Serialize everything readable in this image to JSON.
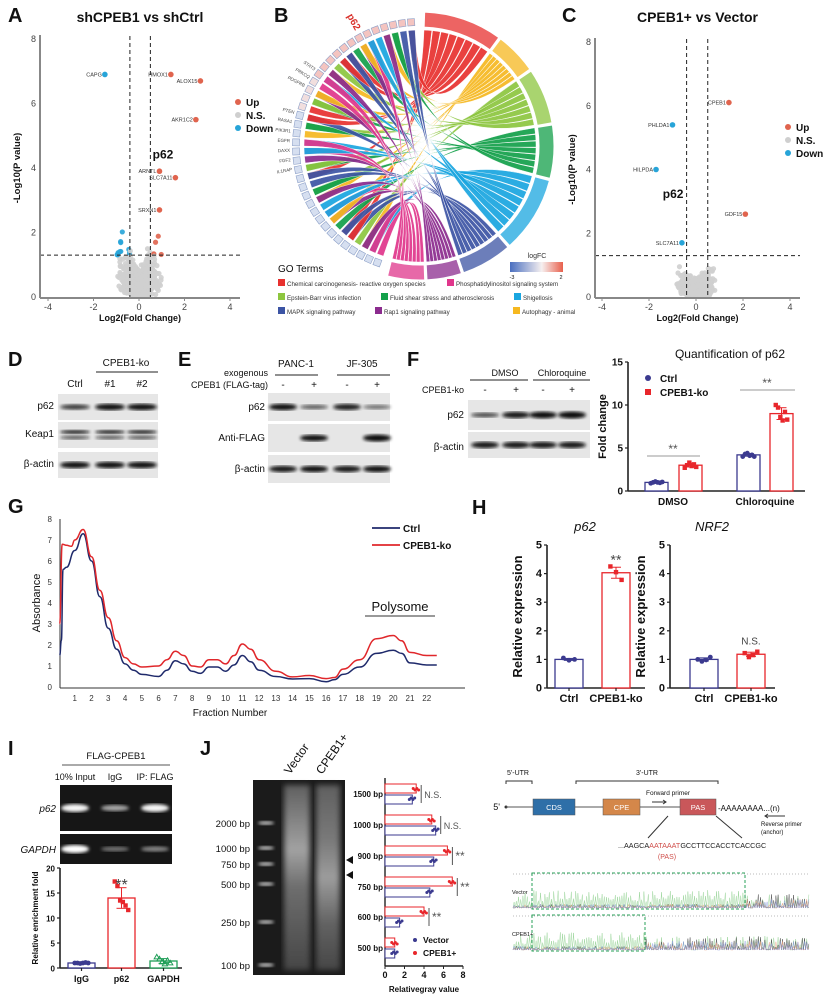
{
  "panel_labels": [
    "A",
    "B",
    "C",
    "D",
    "E",
    "F",
    "G",
    "H",
    "I",
    "J"
  ],
  "colors": {
    "up": "#e0644e",
    "ns": "#cfcfcf",
    "down": "#27a4d8",
    "ctrl": "#3b3a8f",
    "ko": "#e8262b",
    "gapdh": "#1f9e57"
  },
  "chart_data": [
    {
      "id": "A",
      "type": "scatter",
      "title": "shCPEB1 vs shCtrl",
      "xlabel": "Log2(Fold Change)",
      "ylabel": "-Log10(P value)",
      "xlim": [
        -4.4,
        4.4
      ],
      "xticks": [
        -4,
        -2,
        0,
        2,
        4
      ],
      "ylim": [
        0,
        8
      ],
      "yticks": [
        0,
        2,
        4,
        6,
        8
      ],
      "fc_thresholds": [
        -0.4,
        0.5
      ],
      "p_threshold": 1.3,
      "legend": [
        "Up",
        "N.S.",
        "Down"
      ],
      "legend_position": "right",
      "highlight": {
        "label": "p62",
        "x": 0.6,
        "y": 4.3
      },
      "labeled_genes": [
        {
          "name": "CAPG",
          "x": -1.5,
          "y": 6.9
        },
        {
          "name": "HMOX1",
          "x": 1.4,
          "y": 6.9
        },
        {
          "name": "ALOX15",
          "x": 2.7,
          "y": 6.7
        },
        {
          "name": "AKR1C2",
          "x": 2.5,
          "y": 5.5
        },
        {
          "name": "ARNTL",
          "x": 0.9,
          "y": 3.9
        },
        {
          "name": "SLC7A11",
          "x": 1.6,
          "y": 3.7
        },
        {
          "name": "SRXN1",
          "x": 0.9,
          "y": 2.7
        }
      ]
    },
    {
      "id": "B",
      "type": "chord",
      "legend_title": "GO Terms",
      "colorbar_title": "logFC",
      "colorbar_range": [
        -3,
        2
      ],
      "terms": [
        {
          "name": "Chemical carcinogenesis- reactive oxygen species",
          "color": "#e8312f"
        },
        {
          "name": "Phosphatidylinositol signaling system",
          "color": "#e0368c"
        },
        {
          "name": "Epstein-Barr virus infection",
          "color": "#8dc63f"
        },
        {
          "name": "Fluid shear stress and atherosclerosis",
          "color": "#13a04a"
        },
        {
          "name": "Shigellosis",
          "color": "#1aa6e0"
        },
        {
          "name": "MAPK signaling pathway",
          "color": "#3c54a4"
        },
        {
          "name": "Rap1 signaling pathway",
          "color": "#8b2b8e"
        },
        {
          "name": "Autophagy - animal",
          "color": "#f6b820"
        }
      ],
      "highlight_gene": "p62",
      "genes": [
        "STAT3",
        "PRKCQ",
        "PDGFRB",
        "PTEN",
        "RASA1",
        "PIK3R1",
        "EGFR",
        "DAXX",
        "FGF2",
        "IL1RAP"
      ]
    },
    {
      "id": "C",
      "type": "scatter",
      "title": "CPEB1+ vs Vector",
      "xlabel": "Log2(Fold Change)",
      "ylabel": "-Log10(P value)",
      "xlim": [
        -4.4,
        4.4
      ],
      "xticks": [
        -4,
        -2,
        0,
        2,
        4
      ],
      "ylim": [
        0,
        8
      ],
      "yticks": [
        0,
        2,
        4,
        6,
        8
      ],
      "fc_thresholds": [
        -0.4,
        0.5
      ],
      "p_threshold": 1.3,
      "legend": [
        "Up",
        "N.S.",
        "Down"
      ],
      "legend_position": "right",
      "highlight": {
        "label": "p62",
        "x": -0.45,
        "y": 3.1
      },
      "labeled_genes": [
        {
          "name": "CPEB1",
          "x": 1.4,
          "y": 6.1
        },
        {
          "name": "PHLDA1",
          "x": -1.0,
          "y": 5.4
        },
        {
          "name": "HILPDA",
          "x": -1.7,
          "y": 4.0
        },
        {
          "name": "GDF15",
          "x": 2.1,
          "y": 2.6
        },
        {
          "name": "SLC7A11",
          "x": -0.6,
          "y": 1.7
        }
      ]
    },
    {
      "id": "F",
      "type": "bar",
      "title": "Quantification of p62",
      "ylabel": "Fold change",
      "categories": [
        "DMSO",
        "Chloroquine"
      ],
      "ylim": [
        0,
        15
      ],
      "yticks": [
        0,
        5,
        10,
        15
      ],
      "series": [
        {
          "name": "Ctrl",
          "values": [
            1.0,
            4.2
          ],
          "points": [
            [
              0.9,
              1.0,
              1.1,
              1.0,
              0.95,
              1.05
            ],
            [
              4.0,
              4.3,
              4.4,
              4.1,
              4.2,
              4.0
            ]
          ]
        },
        {
          "name": "CPEB1-ko",
          "values": [
            3.0,
            9.0
          ],
          "points": [
            [
              2.7,
              3.0,
              3.3,
              2.9,
              3.1,
              2.8
            ],
            [
              10.0,
              9.7,
              8.6,
              8.2,
              9.2,
              8.3
            ]
          ]
        }
      ],
      "significance": [
        "**",
        "**"
      ],
      "legend_position": "top-left"
    },
    {
      "id": "G",
      "type": "line",
      "xlabel": "Fraction Number",
      "ylabel": "Absorbance",
      "xticks": [
        1,
        2,
        3,
        4,
        5,
        6,
        7,
        8,
        9,
        10,
        11,
        12,
        13,
        14,
        15,
        16,
        17,
        18,
        19,
        20,
        21,
        22
      ],
      "ylim": [
        0,
        8
      ],
      "yticks": [
        0,
        1,
        2,
        3,
        4,
        5,
        6,
        7,
        8
      ],
      "annotation": "Polysome",
      "legend_position": "top-right",
      "series": [
        {
          "name": "Ctrl",
          "color": "#1f2a6b",
          "x": [
            0.1,
            0.2,
            0.3,
            0.5,
            1,
            1.5,
            2,
            2.5,
            3,
            3.5,
            4,
            4.5,
            5,
            6,
            6.5,
            7,
            7.5,
            8,
            8.5,
            9,
            9.5,
            10,
            10.5,
            11,
            11.5,
            12,
            13,
            14,
            15,
            16,
            16.5,
            17,
            18,
            19,
            20,
            20.5,
            21,
            22,
            22.6
          ],
          "y": [
            1.5,
            2.2,
            5.6,
            5.7,
            6.5,
            7.3,
            6.0,
            4.3,
            2.8,
            1.8,
            1.1,
            0.8,
            0.6,
            0.5,
            0.8,
            1.25,
            1.1,
            0.75,
            0.65,
            0.95,
            0.95,
            0.75,
            1.05,
            1.5,
            1.2,
            0.8,
            0.5,
            0.38,
            0.4,
            0.25,
            0.35,
            0.6,
            0.95,
            1.6,
            1.75,
            1.6,
            1.15,
            1.05,
            1.05
          ]
        },
        {
          "name": "CPEB1-ko",
          "color": "#e0272b",
          "x": [
            0.1,
            0.25,
            0.5,
            0.8,
            1,
            1.5,
            2,
            2.5,
            3,
            3.5,
            4,
            4.5,
            5,
            6,
            6.5,
            7,
            7.5,
            8,
            8.5,
            9,
            9.5,
            10,
            10.5,
            11,
            11.5,
            12,
            13,
            14,
            15,
            16,
            16.5,
            17,
            18,
            19,
            20,
            20.5,
            21,
            22,
            22.6
          ],
          "y": [
            3.0,
            6.8,
            6.75,
            6.7,
            7.0,
            7.5,
            6.2,
            4.6,
            3.3,
            2.2,
            1.4,
            1.1,
            0.95,
            1.0,
            1.3,
            1.7,
            1.5,
            1.0,
            0.95,
            1.3,
            1.3,
            1.1,
            1.5,
            2.05,
            1.8,
            1.3,
            0.75,
            0.48,
            0.55,
            0.4,
            0.45,
            0.85,
            1.3,
            2.3,
            2.45,
            2.2,
            1.65,
            1.5,
            1.5
          ]
        }
      ]
    },
    {
      "id": "H1",
      "type": "bar",
      "title": "p62",
      "ylabel": "Relative expression",
      "categories": [
        "Ctrl",
        "CPEB1-ko"
      ],
      "ylim": [
        0,
        5
      ],
      "yticks": [
        0,
        1,
        2,
        3,
        4,
        5
      ],
      "values": [
        1.0,
        4.03
      ],
      "points": [
        [
          1.05,
          0.97,
          1.0
        ],
        [
          4.25,
          4.05,
          3.78
        ]
      ],
      "significance": "**"
    },
    {
      "id": "H2",
      "type": "bar",
      "title": "NRF2",
      "ylabel": "Relative expression",
      "categories": [
        "Ctrl",
        "CPEB1-ko"
      ],
      "ylim": [
        0,
        5
      ],
      "yticks": [
        0,
        1,
        2,
        3,
        4,
        5
      ],
      "values": [
        1.0,
        1.18
      ],
      "points": [
        [
          1.0,
          0.93,
          0.98,
          1.08
        ],
        [
          1.22,
          1.08,
          1.15,
          1.27
        ]
      ],
      "significance": "N.S."
    },
    {
      "id": "I",
      "type": "bar",
      "ylabel": "Relative enrichment fold",
      "categories": [
        "IgG",
        "p62",
        "GAPDH"
      ],
      "ylim": [
        0,
        20
      ],
      "yticks": [
        0,
        5,
        10,
        15,
        20
      ],
      "values": [
        1.0,
        14.0,
        1.4
      ],
      "points": [
        [
          1.0,
          1.0,
          0.9,
          1.0,
          1.1,
          1.0
        ],
        [
          17.3,
          16.4,
          13.5,
          13.2,
          12.5,
          11.6
        ],
        [
          2.2,
          1.8,
          1.2,
          0.8,
          1.5,
          1.0
        ]
      ],
      "significance": [
        "",
        "**",
        ""
      ]
    },
    {
      "id": "J",
      "type": "bar",
      "orientation": "horizontal",
      "xlabel": "Relativegray value",
      "categories": [
        "1500 bp",
        "1000 bp",
        "900 bp",
        "750 bp",
        "600 bp",
        "500 bp"
      ],
      "xlim": [
        0,
        8
      ],
      "xticks": [
        0,
        2,
        4,
        6,
        8
      ],
      "legend_position": "bottom-right",
      "series": [
        {
          "name": "Vector",
          "values": [
            2.8,
            5.2,
            5.0,
            4.6,
            1.5,
            1.0
          ]
        },
        {
          "name": "CPEB1+",
          "values": [
            3.2,
            4.8,
            6.4,
            6.9,
            4.0,
            1.0
          ]
        }
      ],
      "significance": [
        "N.S.",
        "N.S.",
        "**",
        "**",
        "**",
        ""
      ]
    }
  ],
  "blot_D": {
    "group": "CPEB1-ko",
    "lanes": [
      "Ctrl",
      "#1",
      "#2"
    ],
    "rows": [
      {
        "name": "p62",
        "levels": [
          0.6,
          0.9,
          0.9
        ]
      },
      {
        "name": "Keap1",
        "levels": [
          0.8,
          0.8,
          0.8
        ]
      },
      {
        "name": "β-actin",
        "levels": [
          0.9,
          0.9,
          0.9
        ]
      }
    ]
  },
  "blot_E": {
    "groups": [
      "PANC-1",
      "JF-305"
    ],
    "row_label1": "exogenous",
    "row_label2": "CPEB1 (FLAG-tag)",
    "signs": [
      "-",
      "+",
      "-",
      "+"
    ],
    "rows": [
      {
        "name": "p62",
        "levels": [
          0.9,
          0.4,
          0.8,
          0.3
        ]
      },
      {
        "name": "Anti-FLAG",
        "levels": [
          0,
          0.9,
          0,
          1.0
        ]
      },
      {
        "name": "β-actin",
        "levels": [
          0.85,
          0.9,
          0.85,
          0.9
        ]
      }
    ]
  },
  "blot_F": {
    "groups": [
      "DMSO",
      "Chloroquine"
    ],
    "row_label": "CPEB1-ko",
    "signs": [
      "-",
      "+",
      "-",
      "+"
    ],
    "rows": [
      {
        "name": "p62",
        "levels": [
          0.5,
          0.85,
          0.95,
          1.0
        ]
      },
      {
        "name": "β-actin",
        "levels": [
          0.85,
          0.85,
          0.85,
          0.85
        ]
      }
    ]
  },
  "gel_I": {
    "group": "FLAG-CPEB1",
    "lanes": [
      "10% Input",
      "IgG",
      "IP: FLAG"
    ],
    "rows": [
      {
        "name": "p62",
        "levels": [
          0.95,
          0.5,
          0.95
        ]
      },
      {
        "name": "GAPDH",
        "levels": [
          1.0,
          0.2,
          0.3
        ]
      }
    ]
  },
  "gel_J": {
    "lanes": [
      "Vector",
      "CPEB1+"
    ],
    "ladder": [
      "2000 bp",
      "1000 bp",
      "750 bp",
      "500 bp",
      "250 bp",
      "100 bp"
    ]
  },
  "schematic": {
    "five_utr": "5'-UTR",
    "three_utr": "3'-UTR",
    "five_prime": "5'",
    "cds": "CDS",
    "cpe": "CPE",
    "pas": "PAS",
    "forward_primer": "Forward primer",
    "polyA": "-AAAAAAAA...(n)",
    "reverse_primer_1": "Reverse primer",
    "reverse_primer_2": "(anchor)",
    "seq_prefix": "...AAGCA",
    "seq_pas": "AATAAAT",
    "seq_suffix": "GCCTTCCACCTCACCGC",
    "pas_note": "(PAS)",
    "trace_labels": [
      "Vector",
      "CPEB1+"
    ]
  }
}
